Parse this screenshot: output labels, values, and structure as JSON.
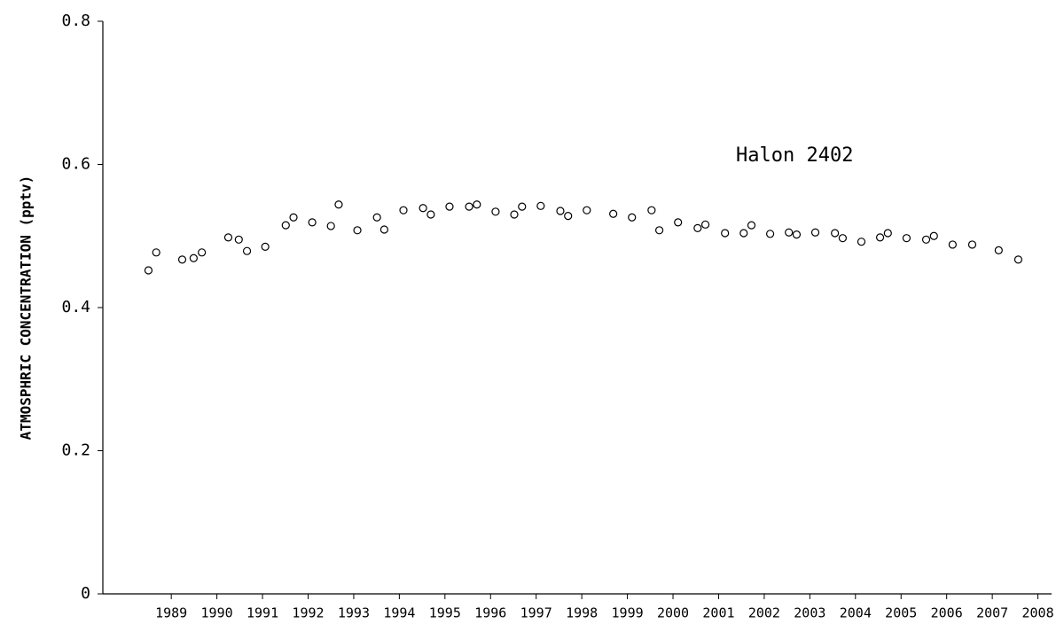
{
  "chart_data": {
    "type": "scatter",
    "annotation": "Halon 2402",
    "y_label": "ATMOSPHRIC CONCENTRATION (pptv)",
    "xlim": [
      1988,
      2008.8
    ],
    "ylim": [
      0,
      0.8
    ],
    "yticks": [
      0,
      0.2,
      0.4,
      0.6,
      0.8
    ],
    "xticks": [
      {
        "value": 1989.5,
        "label": "1989"
      },
      {
        "value": 1990.5,
        "label": "1990"
      },
      {
        "value": 1991.5,
        "label": "1991"
      },
      {
        "value": 1992.5,
        "label": "1992"
      },
      {
        "value": 1993.5,
        "label": "1993"
      },
      {
        "value": 1994.5,
        "label": "1994"
      },
      {
        "value": 1995.5,
        "label": "1995"
      },
      {
        "value": 1996.5,
        "label": "1996"
      },
      {
        "value": 1997.5,
        "label": "1997"
      },
      {
        "value": 1998.5,
        "label": "1998"
      },
      {
        "value": 1999.5,
        "label": "1999"
      },
      {
        "value": 2000.5,
        "label": "2000"
      },
      {
        "value": 2001.5,
        "label": "2001"
      },
      {
        "value": 2002.5,
        "label": "2002"
      },
      {
        "value": 2003.5,
        "label": "2003"
      },
      {
        "value": 2004.5,
        "label": "2004"
      },
      {
        "value": 2005.5,
        "label": "2005"
      },
      {
        "value": 2006.5,
        "label": "2006"
      },
      {
        "value": 2007.5,
        "label": "2007"
      },
      {
        "value": 2008.5,
        "label": "2008"
      }
    ],
    "color": "#000000",
    "x": [
      1989.0,
      1989.17,
      1989.74,
      1989.99,
      1990.17,
      1990.75,
      1990.98,
      1991.16,
      1991.56,
      1992.01,
      1992.18,
      1992.59,
      1993.0,
      1993.17,
      1993.58,
      1994.01,
      1994.17,
      1994.59,
      1995.02,
      1995.19,
      1995.6,
      1996.03,
      1996.2,
      1996.61,
      1997.02,
      1997.19,
      1997.6,
      1998.03,
      1998.2,
      1998.61,
      1999.19,
      1999.6,
      2000.03,
      2000.2,
      2000.61,
      2001.04,
      2001.21,
      2001.64,
      2002.05,
      2002.22,
      2002.63,
      2003.04,
      2003.21,
      2003.62,
      2004.05,
      2004.22,
      2004.63,
      2005.04,
      2005.21,
      2005.62,
      2006.05,
      2006.22,
      2006.63,
      2007.06,
      2007.64,
      2008.07
    ],
    "values": [
      0.452,
      0.477,
      0.467,
      0.469,
      0.477,
      0.498,
      0.495,
      0.479,
      0.485,
      0.515,
      0.526,
      0.519,
      0.514,
      0.544,
      0.508,
      0.526,
      0.509,
      0.536,
      0.539,
      0.53,
      0.541,
      0.541,
      0.544,
      0.534,
      0.53,
      0.541,
      0.542,
      0.535,
      0.528,
      0.536,
      0.531,
      0.526,
      0.536,
      0.508,
      0.519,
      0.511,
      0.516,
      0.504,
      0.504,
      0.515,
      0.503,
      0.505,
      0.502,
      0.505,
      0.504,
      0.497,
      0.492,
      0.498,
      0.504,
      0.497,
      0.495,
      0.5,
      0.488,
      0.488,
      0.48,
      0.467
    ]
  }
}
